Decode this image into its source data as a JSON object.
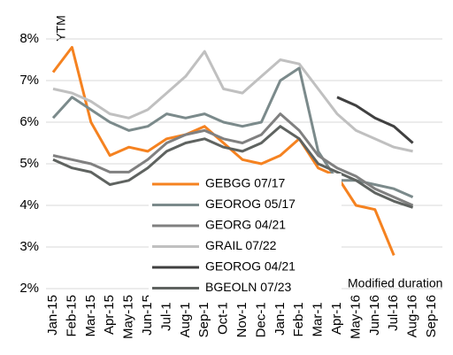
{
  "chart_data": {
    "type": "line",
    "y_label": "YTM",
    "annotation": "Modified duration",
    "categories": [
      "Jan-15",
      "Feb-15",
      "Mar-15",
      "Apr-15",
      "May-15",
      "Jun-15",
      "Jul-15",
      "Aug-15",
      "Sep-15",
      "Oct-15",
      "Nov-15",
      "Dec-15",
      "Jan-16",
      "Feb-16",
      "Mar-16",
      "Apr-16",
      "May-16",
      "Jun-16",
      "Jul-16",
      "Aug-16",
      "Sep-16"
    ],
    "ylim": [
      2,
      8
    ],
    "yticks": [
      {
        "value": 2,
        "label": "2%"
      },
      {
        "value": 3,
        "label": "3%"
      },
      {
        "value": 4,
        "label": "4%"
      },
      {
        "value": 5,
        "label": "5%"
      },
      {
        "value": 6,
        "label": "6%"
      },
      {
        "value": 7,
        "label": "7%"
      },
      {
        "value": 8,
        "label": "8%"
      }
    ],
    "grid": true,
    "legend": "lower center",
    "series": [
      {
        "name": "GEBGG 07/17",
        "color": "#f58220",
        "values": [
          7.2,
          7.8,
          6.0,
          5.2,
          5.4,
          5.3,
          5.6,
          5.7,
          5.9,
          5.5,
          5.1,
          5.0,
          5.2,
          5.6,
          4.9,
          4.7,
          4.0,
          3.9,
          2.8,
          null,
          null
        ]
      },
      {
        "name": "GEOROG 05/17",
        "color": "#7b8a8b",
        "values": [
          6.1,
          6.6,
          6.3,
          6.0,
          5.8,
          5.9,
          6.2,
          6.1,
          6.2,
          6.0,
          5.9,
          6.0,
          7.0,
          7.3,
          5.3,
          4.6,
          4.6,
          4.5,
          4.4,
          4.2,
          null
        ]
      },
      {
        "name": "GEORG 04/21",
        "color": "#808080",
        "values": [
          5.2,
          5.1,
          5.0,
          4.8,
          4.8,
          5.1,
          5.5,
          5.7,
          5.8,
          5.6,
          5.5,
          5.7,
          6.2,
          5.8,
          5.2,
          4.9,
          4.7,
          4.4,
          4.2,
          4.0,
          null
        ]
      },
      {
        "name": "GRAIL 07/22",
        "color": "#c0c0c0",
        "values": [
          6.8,
          6.7,
          6.5,
          6.2,
          6.1,
          6.3,
          6.7,
          7.1,
          7.7,
          6.8,
          6.7,
          7.1,
          7.5,
          7.4,
          6.8,
          6.2,
          5.8,
          5.6,
          5.4,
          5.3,
          null
        ]
      },
      {
        "name": "GEOROG 04/21",
        "color": "#404040",
        "values": [
          null,
          null,
          null,
          null,
          null,
          null,
          null,
          null,
          null,
          null,
          null,
          null,
          null,
          null,
          null,
          6.6,
          6.4,
          6.1,
          5.9,
          5.5,
          null
        ]
      },
      {
        "name": "BGEOLN 07/23",
        "color": "#5f6360",
        "values": [
          5.1,
          4.9,
          4.8,
          4.5,
          4.6,
          4.9,
          5.3,
          5.5,
          5.6,
          5.4,
          5.3,
          5.5,
          5.9,
          5.6,
          5.0,
          4.8,
          4.6,
          4.3,
          4.1,
          3.95,
          null
        ]
      }
    ]
  }
}
